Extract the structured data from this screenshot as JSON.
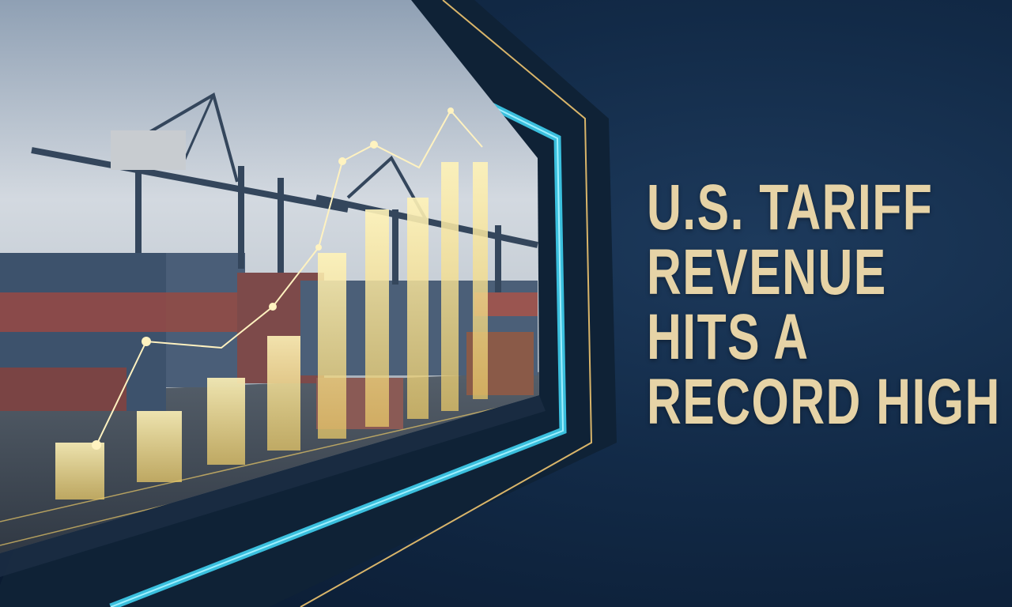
{
  "headline": {
    "lines": [
      "U.S. TARIFF",
      "REVENUE",
      "HITS A",
      "RECORD HIGH"
    ]
  },
  "colors": {
    "background": "#122a47",
    "headline_text": "#e6d3a6",
    "frame_glow": "#3fd0f0",
    "frame_gold_line": "#d9b56a",
    "bars": "#f3dc8a",
    "sky": "#c9d3de"
  },
  "icons": {
    "illustration": "port-cranes-containers-rising-bar-chart"
  }
}
